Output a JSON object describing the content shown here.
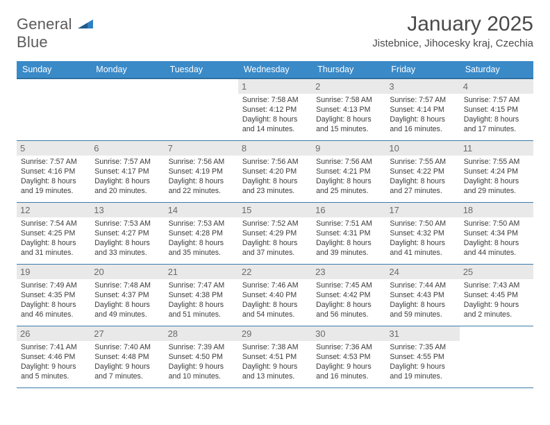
{
  "logo": {
    "word1": "General",
    "word2": "Blue"
  },
  "title": "January 2025",
  "location": "Jistebnice, Jihocesky kraj, Czechia",
  "colors": {
    "header_bg": "#3a8ac8",
    "header_border": "#2f6fa0",
    "week_border": "#3a7aaa",
    "daynum_bg": "#e9e9e9",
    "logo_blue": "#2f7fc2"
  },
  "dayHeaders": [
    "Sunday",
    "Monday",
    "Tuesday",
    "Wednesday",
    "Thursday",
    "Friday",
    "Saturday"
  ],
  "weeks": [
    [
      null,
      null,
      null,
      {
        "n": "1",
        "sr": "7:58 AM",
        "ss": "4:12 PM",
        "dl": "8 hours and 14 minutes."
      },
      {
        "n": "2",
        "sr": "7:58 AM",
        "ss": "4:13 PM",
        "dl": "8 hours and 15 minutes."
      },
      {
        "n": "3",
        "sr": "7:57 AM",
        "ss": "4:14 PM",
        "dl": "8 hours and 16 minutes."
      },
      {
        "n": "4",
        "sr": "7:57 AM",
        "ss": "4:15 PM",
        "dl": "8 hours and 17 minutes."
      }
    ],
    [
      {
        "n": "5",
        "sr": "7:57 AM",
        "ss": "4:16 PM",
        "dl": "8 hours and 19 minutes."
      },
      {
        "n": "6",
        "sr": "7:57 AM",
        "ss": "4:17 PM",
        "dl": "8 hours and 20 minutes."
      },
      {
        "n": "7",
        "sr": "7:56 AM",
        "ss": "4:19 PM",
        "dl": "8 hours and 22 minutes."
      },
      {
        "n": "8",
        "sr": "7:56 AM",
        "ss": "4:20 PM",
        "dl": "8 hours and 23 minutes."
      },
      {
        "n": "9",
        "sr": "7:56 AM",
        "ss": "4:21 PM",
        "dl": "8 hours and 25 minutes."
      },
      {
        "n": "10",
        "sr": "7:55 AM",
        "ss": "4:22 PM",
        "dl": "8 hours and 27 minutes."
      },
      {
        "n": "11",
        "sr": "7:55 AM",
        "ss": "4:24 PM",
        "dl": "8 hours and 29 minutes."
      }
    ],
    [
      {
        "n": "12",
        "sr": "7:54 AM",
        "ss": "4:25 PM",
        "dl": "8 hours and 31 minutes."
      },
      {
        "n": "13",
        "sr": "7:53 AM",
        "ss": "4:27 PM",
        "dl": "8 hours and 33 minutes."
      },
      {
        "n": "14",
        "sr": "7:53 AM",
        "ss": "4:28 PM",
        "dl": "8 hours and 35 minutes."
      },
      {
        "n": "15",
        "sr": "7:52 AM",
        "ss": "4:29 PM",
        "dl": "8 hours and 37 minutes."
      },
      {
        "n": "16",
        "sr": "7:51 AM",
        "ss": "4:31 PM",
        "dl": "8 hours and 39 minutes."
      },
      {
        "n": "17",
        "sr": "7:50 AM",
        "ss": "4:32 PM",
        "dl": "8 hours and 41 minutes."
      },
      {
        "n": "18",
        "sr": "7:50 AM",
        "ss": "4:34 PM",
        "dl": "8 hours and 44 minutes."
      }
    ],
    [
      {
        "n": "19",
        "sr": "7:49 AM",
        "ss": "4:35 PM",
        "dl": "8 hours and 46 minutes."
      },
      {
        "n": "20",
        "sr": "7:48 AM",
        "ss": "4:37 PM",
        "dl": "8 hours and 49 minutes."
      },
      {
        "n": "21",
        "sr": "7:47 AM",
        "ss": "4:38 PM",
        "dl": "8 hours and 51 minutes."
      },
      {
        "n": "22",
        "sr": "7:46 AM",
        "ss": "4:40 PM",
        "dl": "8 hours and 54 minutes."
      },
      {
        "n": "23",
        "sr": "7:45 AM",
        "ss": "4:42 PM",
        "dl": "8 hours and 56 minutes."
      },
      {
        "n": "24",
        "sr": "7:44 AM",
        "ss": "4:43 PM",
        "dl": "8 hours and 59 minutes."
      },
      {
        "n": "25",
        "sr": "7:43 AM",
        "ss": "4:45 PM",
        "dl": "9 hours and 2 minutes."
      }
    ],
    [
      {
        "n": "26",
        "sr": "7:41 AM",
        "ss": "4:46 PM",
        "dl": "9 hours and 5 minutes."
      },
      {
        "n": "27",
        "sr": "7:40 AM",
        "ss": "4:48 PM",
        "dl": "9 hours and 7 minutes."
      },
      {
        "n": "28",
        "sr": "7:39 AM",
        "ss": "4:50 PM",
        "dl": "9 hours and 10 minutes."
      },
      {
        "n": "29",
        "sr": "7:38 AM",
        "ss": "4:51 PM",
        "dl": "9 hours and 13 minutes."
      },
      {
        "n": "30",
        "sr": "7:36 AM",
        "ss": "4:53 PM",
        "dl": "9 hours and 16 minutes."
      },
      {
        "n": "31",
        "sr": "7:35 AM",
        "ss": "4:55 PM",
        "dl": "9 hours and 19 minutes."
      },
      null
    ]
  ],
  "labels": {
    "sunrise": "Sunrise: ",
    "sunset": "Sunset: ",
    "daylight": "Daylight: "
  }
}
